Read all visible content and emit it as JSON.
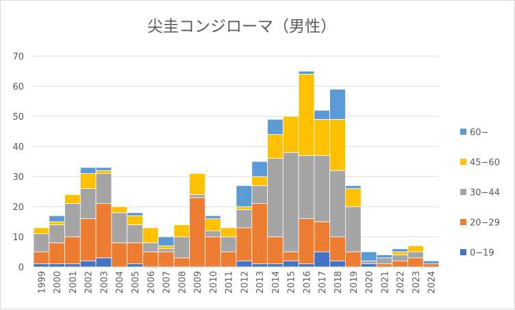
{
  "chart_data": {
    "type": "bar",
    "stacked": true,
    "title": "尖圭コンジローマ（男性）",
    "xlabel": "",
    "ylabel": "",
    "ylim": [
      0,
      70
    ],
    "yticks": [
      0,
      10,
      20,
      30,
      40,
      50,
      60,
      70
    ],
    "grid": true,
    "legend_position": "right",
    "categories": [
      "1999",
      "2000",
      "2001",
      "2002",
      "2003",
      "2004",
      "2005",
      "2006",
      "2007",
      "2008",
      "2009",
      "2010",
      "2011",
      "2012",
      "2013",
      "2014",
      "2015",
      "2016",
      "2017",
      "2018",
      "2019",
      "2020",
      "2021",
      "2022",
      "2023",
      "2024"
    ],
    "series": [
      {
        "name": "0−19",
        "color": "#4472c4",
        "values": [
          1,
          1,
          1,
          2,
          3,
          0,
          1,
          0,
          0,
          0,
          0,
          0,
          0,
          2,
          1,
          1,
          2,
          1,
          5,
          2,
          0,
          1,
          0,
          0,
          0,
          0
        ]
      },
      {
        "name": "20−29",
        "color": "#ed7d31",
        "values": [
          4,
          7,
          9,
          14,
          18,
          8,
          7,
          5,
          5,
          3,
          23,
          10,
          5,
          11,
          20,
          9,
          3,
          15,
          10,
          8,
          5,
          0,
          1,
          2,
          3,
          1
        ]
      },
      {
        "name": "30−44",
        "color": "#a5a5a5",
        "values": [
          6,
          6,
          11,
          10,
          10,
          10,
          6,
          3,
          1,
          7,
          1,
          2,
          5,
          6,
          6,
          26,
          33,
          21,
          22,
          22,
          15,
          1,
          2,
          2,
          2,
          0
        ]
      },
      {
        "name": "45−60",
        "color": "#ffc000",
        "values": [
          2,
          1,
          3,
          5,
          1,
          2,
          3,
          5,
          1,
          4,
          7,
          4,
          3,
          1,
          3,
          8,
          12,
          27,
          12,
          17,
          6,
          0,
          0,
          1,
          2,
          0
        ]
      },
      {
        "name": "60−",
        "color": "#5b9bd5",
        "values": [
          0,
          2,
          0,
          2,
          1,
          0,
          1,
          0,
          3,
          0,
          0,
          1,
          0,
          7,
          5,
          5,
          0,
          1,
          3,
          10,
          1,
          3,
          1,
          1,
          0,
          1
        ]
      }
    ]
  }
}
